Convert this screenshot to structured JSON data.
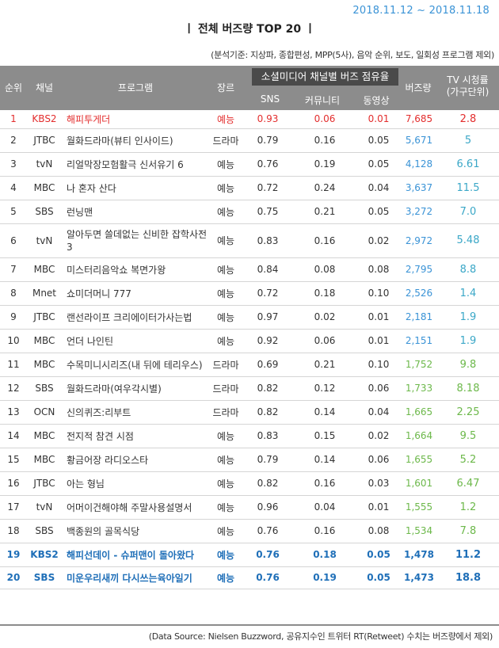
{
  "date_range": "2018.11.12 ~ 2018.11.18",
  "title": "ㅣ 전체 버즈량 TOP 20 ㅣ",
  "basis": "(분석기준: 지상파, 종합편성, MPP(5사), 음악 순위, 보도, 일회성 프로그램 제외)",
  "header": {
    "rank": "순위",
    "channel": "채널",
    "program": "프로그램",
    "genre": "장르",
    "group": "소셜미디어 채널별 버즈 점유율",
    "sns": "SNS",
    "community": "커뮤니티",
    "video": "동영상",
    "buzz": "버즈량",
    "tv_line1": "TV 시청률",
    "tv_line2": "(가구단위)"
  },
  "rows": [
    {
      "rank": "1",
      "channel": "KBS2",
      "program": "해피투게더",
      "genre": "예능",
      "sns": "0.93",
      "community": "0.06",
      "video": "0.01",
      "buzz": "7,685",
      "tv": "2.8"
    },
    {
      "rank": "2",
      "channel": "JTBC",
      "program": "월화드라마(뷰티 인사이드)",
      "genre": "드라마",
      "sns": "0.79",
      "community": "0.16",
      "video": "0.05",
      "buzz": "5,671",
      "tv": "5"
    },
    {
      "rank": "3",
      "channel": "tvN",
      "program": "리얼막장모험활극 신서유기 6",
      "genre": "예능",
      "sns": "0.76",
      "community": "0.19",
      "video": "0.05",
      "buzz": "4,128",
      "tv": "6.61"
    },
    {
      "rank": "4",
      "channel": "MBC",
      "program": "나 혼자 산다",
      "genre": "예능",
      "sns": "0.72",
      "community": "0.24",
      "video": "0.04",
      "buzz": "3,637",
      "tv": "11.5"
    },
    {
      "rank": "5",
      "channel": "SBS",
      "program": "런닝맨",
      "genre": "예능",
      "sns": "0.75",
      "community": "0.21",
      "video": "0.05",
      "buzz": "3,272",
      "tv": "7.0"
    },
    {
      "rank": "6",
      "channel": "tvN",
      "program": "알아두면 쓸데없는 신비한 잡학사전 3",
      "genre": "예능",
      "sns": "0.83",
      "community": "0.16",
      "video": "0.02",
      "buzz": "2,972",
      "tv": "5.48"
    },
    {
      "rank": "7",
      "channel": "MBC",
      "program": "미스터리음악쇼 복면가왕",
      "genre": "예능",
      "sns": "0.84",
      "community": "0.08",
      "video": "0.08",
      "buzz": "2,795",
      "tv": "8.8"
    },
    {
      "rank": "8",
      "channel": "Mnet",
      "program": "쇼미더머니 777",
      "genre": "예능",
      "sns": "0.72",
      "community": "0.18",
      "video": "0.10",
      "buzz": "2,526",
      "tv": "1.4"
    },
    {
      "rank": "9",
      "channel": "JTBC",
      "program": "랜선라이프 크리에이터가사는법",
      "genre": "예능",
      "sns": "0.97",
      "community": "0.02",
      "video": "0.01",
      "buzz": "2,181",
      "tv": "1.9"
    },
    {
      "rank": "10",
      "channel": "MBC",
      "program": "언더 나인틴",
      "genre": "예능",
      "sns": "0.92",
      "community": "0.06",
      "video": "0.01",
      "buzz": "2,151",
      "tv": "1.9"
    },
    {
      "rank": "11",
      "channel": "MBC",
      "program": "수목미니시리즈(내 뒤에 테리우스)",
      "genre": "드라마",
      "sns": "0.69",
      "community": "0.21",
      "video": "0.10",
      "buzz": "1,752",
      "tv": "9.8"
    },
    {
      "rank": "12",
      "channel": "SBS",
      "program": "월화드라마(여우각시별)",
      "genre": "드라마",
      "sns": "0.82",
      "community": "0.12",
      "video": "0.06",
      "buzz": "1,733",
      "tv": "8.18"
    },
    {
      "rank": "13",
      "channel": "OCN",
      "program": "신의퀴즈:리부트",
      "genre": "드라마",
      "sns": "0.82",
      "community": "0.14",
      "video": "0.04",
      "buzz": "1,665",
      "tv": "2.25"
    },
    {
      "rank": "14",
      "channel": "MBC",
      "program": "전지적 참견 시점",
      "genre": "예능",
      "sns": "0.83",
      "community": "0.15",
      "video": "0.02",
      "buzz": "1,664",
      "tv": "9.5"
    },
    {
      "rank": "15",
      "channel": "MBC",
      "program": "황금어장 라디오스타",
      "genre": "예능",
      "sns": "0.79",
      "community": "0.14",
      "video": "0.06",
      "buzz": "1,655",
      "tv": "5.2"
    },
    {
      "rank": "16",
      "channel": "JTBC",
      "program": "아는 형님",
      "genre": "예능",
      "sns": "0.82",
      "community": "0.16",
      "video": "0.03",
      "buzz": "1,601",
      "tv": "6.47"
    },
    {
      "rank": "17",
      "channel": "tvN",
      "program": "어머이건해야해 주말사용설명서",
      "genre": "예능",
      "sns": "0.96",
      "community": "0.04",
      "video": "0.01",
      "buzz": "1,555",
      "tv": "1.2"
    },
    {
      "rank": "18",
      "channel": "SBS",
      "program": "백종원의 골목식당",
      "genre": "예능",
      "sns": "0.76",
      "community": "0.16",
      "video": "0.08",
      "buzz": "1,534",
      "tv": "7.8"
    },
    {
      "rank": "19",
      "channel": "KBS2",
      "program": "해피선데이 - 슈퍼맨이 돌아왔다",
      "genre": "예능",
      "sns": "0.76",
      "community": "0.18",
      "video": "0.05",
      "buzz": "1,478",
      "tv": "11.2"
    },
    {
      "rank": "20",
      "channel": "SBS",
      "program": "미운우리새끼 다시쓰는육아일기",
      "genre": "예능",
      "sns": "0.76",
      "community": "0.19",
      "video": "0.05",
      "buzz": "1,473",
      "tv": "18.8"
    }
  ],
  "footer": "(Data Source: Nielsen Buzzword, 공유지수인 트위터 RT(Retweet) 수치는 버즈량에서 제외)",
  "colors": {
    "header_bg": "#8c8c8c",
    "group_bg": "#4a4a4a",
    "rank1": "#e32d2d",
    "highlight_blue": "#1f6fb8",
    "buzz_blue": "#3a93d6",
    "buzz_green": "#6cb84a",
    "tv_teal": "#3aa7c7",
    "date_blue": "#3a93d6"
  }
}
